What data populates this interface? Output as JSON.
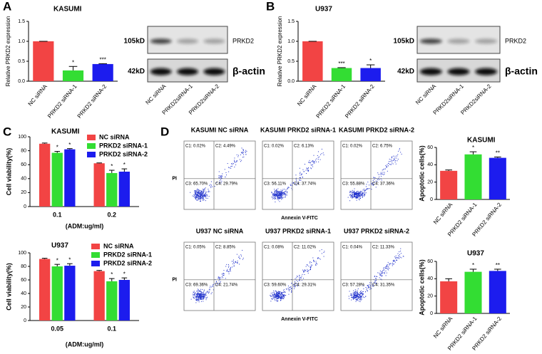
{
  "panels": [
    "A",
    "B",
    "C",
    "D"
  ],
  "blots": [
    {
      "lanes": [
        "NC siRNA",
        "PRKD2siRNA-1",
        "PRKD2siRNA-2"
      ],
      "rows": [
        {
          "size": "105kD",
          "label": "PRKD2"
        },
        {
          "size": "42kD",
          "label": "β-actin"
        }
      ]
    },
    {
      "lanes": [
        "NC siRNA",
        "PRKD2siRNA-1",
        "PRKD2siRNA-2"
      ],
      "rows": [
        {
          "size": "105kD",
          "label": "PRKD2"
        },
        {
          "size": "42kD",
          "label": "β-actin"
        }
      ]
    }
  ],
  "flow": {
    "x_label": "Annexin V-FITC",
    "y_label": "PI",
    "plots": [
      {
        "title": "KASUMI NC siRNA",
        "quadrants": [
          "C1: 0.02%",
          "C2: 4.49%",
          "C3: 65.70%",
          "C4: 29.79%"
        ]
      },
      {
        "title": "KASUMI PRKD2 siRNA-1",
        "quadrants": [
          "C1: 0.02%",
          "C2: 6.13%",
          "C3: 56.11%",
          "C4: 37.74%"
        ]
      },
      {
        "title": "KASUMI PRKD2 siRNA-2",
        "quadrants": [
          "C1: 0.02%",
          "C2: 6.75%",
          "C3: 55.88%",
          "C4: 37.36%"
        ]
      },
      {
        "title": "U937 NC siRNA",
        "quadrants": [
          "C1: 0.05%",
          "C2: 8.85%",
          "C3: 69.36%",
          "C4: 21.74%"
        ]
      },
      {
        "title": "U937 PRKD2 siRNA-1",
        "quadrants": [
          "C1: 0.08%",
          "C2: 11.02%",
          "C3: 59.60%",
          "C4: 29.31%"
        ]
      },
      {
        "title": "U937 PRKD2 siRNA-2",
        "quadrants": [
          "C1: 0.04%",
          "C2: 11.33%",
          "C3: 57.28%",
          "C4: 31.35%"
        ]
      }
    ]
  },
  "chart_data": [
    {
      "type": "bar",
      "title": "KASUMI",
      "y_label": "Relative PRKD2 expression",
      "categories": [
        "NC siRNA",
        "PRKD2 siRNA-1",
        "PRKD2 siRNA-2"
      ],
      "values": [
        1.0,
        0.27,
        0.43
      ],
      "errors": [
        0,
        0.1,
        0.01
      ],
      "colors": [
        "#f24444",
        "#33dd33",
        "#1c1cee"
      ],
      "stars": [
        null,
        "*",
        "***"
      ],
      "ylim": [
        0,
        1.5
      ],
      "yticks": [
        {
          "value": 0,
          "label": "0.0"
        },
        {
          "value": 0.5,
          "label": "0.5"
        },
        {
          "value": 1,
          "label": "1.0"
        },
        {
          "value": 1.5,
          "label": "1.5"
        }
      ]
    },
    {
      "type": "bar",
      "title": "U937",
      "y_label": "Relative PRKD2 expression",
      "categories": [
        "NC siRNA",
        "PRKD2 siRNA-1",
        "PRKD2 siRNA-2"
      ],
      "values": [
        1.0,
        0.33,
        0.33
      ],
      "errors": [
        0,
        0.01,
        0.08
      ],
      "colors": [
        "#f24444",
        "#33dd33",
        "#1c1cee"
      ],
      "stars": [
        null,
        "***",
        "*"
      ],
      "ylim": [
        0,
        1.5
      ],
      "yticks": [
        {
          "value": 0,
          "label": "0.0"
        },
        {
          "value": 0.5,
          "label": "0.5"
        },
        {
          "value": 1,
          "label": "1.0"
        },
        {
          "value": 1.5,
          "label": "1.5"
        }
      ]
    },
    {
      "type": "grouped_bar",
      "title": "KASUMI",
      "y_label": "Cell viability(%)",
      "x_label": "(ADM:ug/ml)",
      "categories": [
        "0.1",
        "0.2"
      ],
      "legend": "upper right",
      "series": [
        {
          "name": "NC siRNA",
          "color": "#f24444",
          "values": [
            90,
            62
          ],
          "errors": [
            1,
            0.5
          ]
        },
        {
          "name": "PRKD2 siRNA-1",
          "color": "#33dd33",
          "values": [
            77,
            48
          ],
          "errors": [
            2,
            4
          ],
          "stars": [
            "*",
            "*"
          ]
        },
        {
          "name": "PRKD2 siRNA-2",
          "color": "#1c1cee",
          "values": [
            82,
            50
          ],
          "errors": [
            1,
            4
          ],
          "stars": [
            "*",
            "*"
          ]
        }
      ],
      "ylim": [
        0,
        100
      ],
      "yticks": [
        0,
        20,
        40,
        60,
        80,
        100
      ]
    },
    {
      "type": "grouped_bar",
      "title": "U937",
      "y_label": "Cell viability(%)",
      "x_label": "(ADM:ug/ml)",
      "categories": [
        "0.05",
        "0.1"
      ],
      "legend": "upper right",
      "series": [
        {
          "name": "NC siRNA",
          "color": "#f24444",
          "values": [
            91,
            73
          ],
          "errors": [
            1,
            1
          ]
        },
        {
          "name": "PRKD2 siRNA-1",
          "color": "#33dd33",
          "values": [
            80,
            58
          ],
          "errors": [
            3,
            4
          ],
          "stars": [
            "*",
            "*"
          ]
        },
        {
          "name": "PRKD2 siRNA-2",
          "color": "#1c1cee",
          "values": [
            81,
            60
          ],
          "errors": [
            3,
            3
          ],
          "stars": [
            "*",
            "*"
          ]
        }
      ],
      "ylim": [
        0,
        100
      ],
      "yticks": [
        0,
        20,
        40,
        60,
        80,
        100
      ]
    },
    {
      "type": "bar",
      "title": "KASUMI",
      "y_label": "Apoptotic cells(%)",
      "categories": [
        "NC siRNA",
        "PRKD2 siRNA-1",
        "PRKD2 siRNA-2"
      ],
      "values": [
        33,
        52,
        48
      ],
      "errors": [
        1,
        3,
        1
      ],
      "colors": [
        "#f24444",
        "#33dd33",
        "#1c1cee"
      ],
      "stars": [
        null,
        "*",
        "**"
      ],
      "ylim": [
        0,
        60
      ],
      "yticks": [
        0,
        20,
        40,
        60
      ]
    },
    {
      "type": "bar",
      "title": "U937",
      "y_label": "Apoptotic cells(%)",
      "categories": [
        "NC siRNA",
        "PRKD2 siRNA-1",
        "PRKD2 siRNA-2"
      ],
      "values": [
        37,
        48,
        49
      ],
      "errors": [
        3,
        3,
        2
      ],
      "colors": [
        "#f24444",
        "#33dd33",
        "#1c1cee"
      ],
      "stars": [
        null,
        "*",
        "**"
      ],
      "ylim": [
        0,
        60
      ],
      "yticks": [
        0,
        20,
        40,
        60
      ]
    }
  ]
}
